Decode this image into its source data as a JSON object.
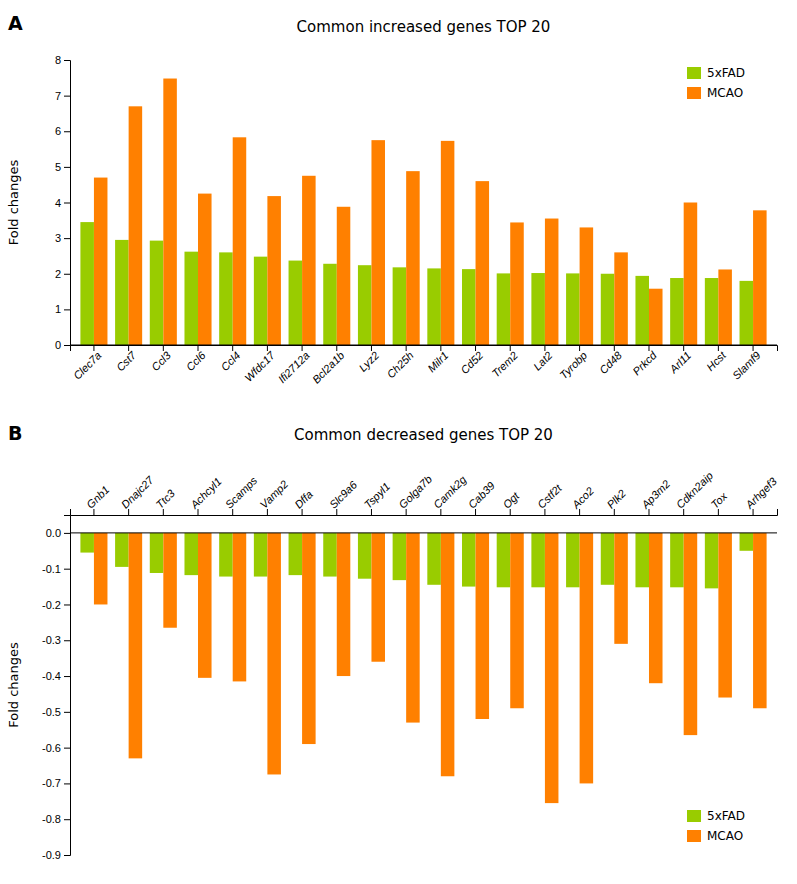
{
  "chart_data": [
    {
      "type": "bar",
      "title": "Common increased genes TOP 20",
      "ylabel": "Fold changes",
      "annotations": [
        "A"
      ],
      "categories": [
        "Clec7a",
        "Cst7",
        "Ccl3",
        "Ccl6",
        "Ccl4",
        "Wfdc17",
        "Ifi2712a",
        "Bcl2a1b",
        "Lyz2",
        "Ch25h",
        "Milr1",
        "Cd52",
        "Trem2",
        "Lat2",
        "Tyrobp",
        "Cd48",
        "Prkcd",
        "Arl11",
        "Hcst",
        "Slamf9"
      ],
      "series": [
        {
          "name": "5xFAD",
          "color": "#99cc00",
          "values": [
            3.45,
            2.95,
            2.93,
            2.62,
            2.6,
            2.48,
            2.37,
            2.28,
            2.24,
            2.18,
            2.15,
            2.13,
            2.01,
            2.02,
            2.01,
            2.0,
            1.94,
            1.88,
            1.88,
            1.8
          ]
        },
        {
          "name": "MCAO",
          "color": "#ff8000",
          "values": [
            4.7,
            6.7,
            7.48,
            4.25,
            5.83,
            4.18,
            4.75,
            3.88,
            5.75,
            4.88,
            5.73,
            4.6,
            3.44,
            3.55,
            3.3,
            2.6,
            1.58,
            4.0,
            2.12,
            3.78
          ]
        }
      ],
      "ylim": [
        0,
        8
      ],
      "yticks": [
        0,
        1,
        2,
        3,
        4,
        5,
        6,
        7,
        8
      ],
      "grid": false,
      "legend": "upper right"
    },
    {
      "type": "bar",
      "title": "Common decreased genes TOP 20",
      "ylabel": "Fold changes",
      "annotations": [
        "B"
      ],
      "categories": [
        "Gnb1",
        "Dnajc27",
        "Ttc3",
        "Achcyl1",
        "Scamps",
        "Vamp2",
        "Dffa",
        "Slc9a6",
        "Tspyl1",
        "Golga7b",
        "Camk2g",
        "Cab39",
        "Ogt",
        "Cstf2t",
        "Aco2",
        "Plk2",
        "Ap3m2",
        "Cdkn2aip",
        "Tox",
        "Arhgef3"
      ],
      "series": [
        {
          "name": "5xFAD",
          "color": "#99cc00",
          "values": [
            -0.055,
            -0.095,
            -0.112,
            -0.118,
            -0.122,
            -0.122,
            -0.118,
            -0.122,
            -0.128,
            -0.132,
            -0.145,
            -0.15,
            -0.152,
            -0.152,
            -0.152,
            -0.145,
            -0.152,
            -0.152,
            -0.155,
            -0.05
          ]
        },
        {
          "name": "MCAO",
          "color": "#ff8000",
          "values": [
            -0.2,
            -0.63,
            -0.265,
            -0.405,
            -0.415,
            -0.675,
            -0.59,
            -0.4,
            -0.36,
            -0.53,
            -0.68,
            -0.52,
            -0.49,
            -0.755,
            -0.7,
            -0.31,
            -0.42,
            -0.565,
            -0.46,
            -0.49
          ]
        }
      ],
      "ylim": [
        -0.9,
        0.05
      ],
      "yticks": [
        -0.9,
        -0.8,
        -0.7,
        -0.6,
        -0.5,
        -0.4,
        -0.3,
        -0.2,
        -0.1,
        {
          "value": 0.0,
          "label": "0.0"
        }
      ],
      "grid": false,
      "legend": "lower right"
    }
  ]
}
